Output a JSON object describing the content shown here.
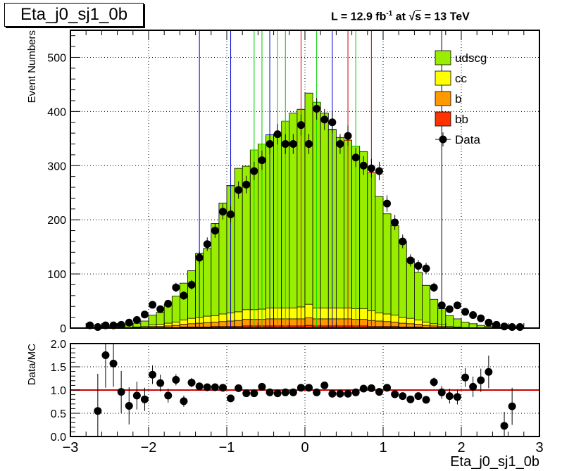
{
  "title": "Eta_j0_sj1_0b",
  "lumi_label": {
    "prefix": "L = 12.9 fb",
    "exponent": "-1",
    "middle": " at ",
    "sqrt_symbol": "√",
    "sqrt_arg": "s",
    "suffix": " = 13 TeV"
  },
  "colors": {
    "udscg": "#99ee00",
    "cc": "#ffff00",
    "b": "#ff9900",
    "bb": "#ff3300",
    "ratio_line": "#cc0000"
  },
  "chart_data": [
    {
      "type": "bar",
      "stacked": true,
      "ylabel": "Event Numbers",
      "xlim": [
        -3,
        3
      ],
      "ylim": [
        0,
        550
      ],
      "yticks": [
        0,
        100,
        200,
        300,
        400,
        500
      ],
      "grid": true,
      "legend_position": "top-right",
      "x_bin_centers": [
        -2.75,
        -2.65,
        -2.55,
        -2.45,
        -2.35,
        -2.25,
        -2.15,
        -2.05,
        -1.95,
        -1.85,
        -1.75,
        -1.65,
        -1.55,
        -1.45,
        -1.35,
        -1.25,
        -1.15,
        -1.05,
        -0.95,
        -0.85,
        -0.75,
        -0.65,
        -0.55,
        -0.45,
        -0.35,
        -0.25,
        -0.15,
        -0.05,
        0.05,
        0.15,
        0.25,
        0.35,
        0.45,
        0.55,
        0.65,
        0.75,
        0.85,
        0.95,
        1.05,
        1.15,
        1.25,
        1.35,
        1.45,
        1.55,
        1.65,
        1.75,
        1.85,
        1.95,
        2.05,
        2.15,
        2.25,
        2.35,
        2.45,
        2.55,
        2.65,
        2.75
      ],
      "series": [
        {
          "name": "udscg",
          "values": [
            1,
            1,
            2,
            3,
            4,
            5,
            7,
            10,
            18,
            22,
            35,
            48,
            68,
            88,
            118,
            125,
            170,
            205,
            235,
            265,
            265,
            295,
            305,
            320,
            322,
            345,
            360,
            365,
            390,
            380,
            360,
            330,
            315,
            310,
            300,
            290,
            255,
            215,
            185,
            165,
            140,
            110,
            88,
            68,
            45,
            30,
            20,
            15,
            10,
            8,
            5,
            3,
            2,
            1,
            1,
            1
          ]
        },
        {
          "name": "cc",
          "values": [
            0,
            0,
            0,
            0,
            0,
            1,
            1,
            2,
            3,
            4,
            5,
            6,
            8,
            10,
            11,
            12,
            12,
            14,
            15,
            16,
            18,
            18,
            19,
            20,
            20,
            20,
            20,
            22,
            25,
            20,
            20,
            20,
            20,
            20,
            20,
            20,
            18,
            15,
            14,
            13,
            11,
            10,
            8,
            6,
            4,
            3,
            2,
            1,
            1,
            0,
            0,
            0,
            0,
            0,
            0,
            0
          ]
        },
        {
          "name": "b",
          "values": [
            0,
            0,
            0,
            0,
            0,
            0,
            1,
            1,
            2,
            2,
            3,
            4,
            5,
            6,
            7,
            8,
            8,
            9,
            10,
            11,
            12,
            12,
            12,
            13,
            13,
            13,
            13,
            13,
            14,
            13,
            13,
            13,
            13,
            13,
            12,
            12,
            11,
            10,
            9,
            8,
            7,
            6,
            5,
            4,
            3,
            2,
            1,
            1,
            0,
            0,
            0,
            0,
            0,
            0,
            0,
            0
          ]
        },
        {
          "name": "bb",
          "values": [
            0,
            0,
            0,
            0,
            0,
            0,
            0,
            0,
            1,
            1,
            1,
            1,
            2,
            2,
            2,
            2,
            3,
            3,
            3,
            3,
            4,
            4,
            4,
            4,
            4,
            4,
            4,
            4,
            5,
            4,
            4,
            4,
            4,
            4,
            4,
            4,
            3,
            3,
            3,
            3,
            2,
            2,
            2,
            1,
            1,
            1,
            0,
            0,
            0,
            0,
            0,
            0,
            0,
            0,
            0,
            0
          ]
        },
        {
          "name": "Data",
          "kind": "points",
          "x": [
            -2.75,
            -2.65,
            -2.55,
            -2.45,
            -2.35,
            -2.25,
            -2.15,
            -2.05,
            -1.95,
            -1.85,
            -1.75,
            -1.65,
            -1.55,
            -1.45,
            -1.35,
            -1.25,
            -1.15,
            -1.05,
            -0.95,
            -0.85,
            -0.75,
            -0.65,
            -0.55,
            -0.45,
            -0.35,
            -0.25,
            -0.15,
            -0.05,
            0.05,
            0.15,
            0.25,
            0.35,
            0.45,
            0.55,
            0.65,
            0.75,
            0.85,
            0.95,
            1.05,
            1.15,
            1.25,
            1.35,
            1.45,
            1.55,
            1.65,
            1.75,
            1.85,
            1.95,
            2.05,
            2.15,
            2.25,
            2.35,
            2.45,
            2.55,
            2.65,
            2.75
          ],
          "values": [
            5,
            2,
            5,
            5,
            6,
            10,
            15,
            25,
            43,
            35,
            45,
            75,
            60,
            80,
            130,
            155,
            180,
            215,
            210,
            255,
            265,
            290,
            310,
            340,
            358,
            340,
            340,
            375,
            340,
            405,
            385,
            380,
            340,
            355,
            315,
            300,
            295,
            290,
            230,
            195,
            160,
            125,
            115,
            110,
            75,
            42,
            35,
            42,
            30,
            24,
            18,
            10,
            6,
            3,
            2,
            2
          ]
        }
      ]
    },
    {
      "type": "scatter",
      "ylabel": "Data/MC",
      "xlabel": "Eta_j0_sj1_0b",
      "xlim": [
        -3,
        3
      ],
      "ylim": [
        0,
        2
      ],
      "yticks": [
        0,
        0.5,
        1,
        1.5,
        2
      ],
      "xticks": [
        -3,
        -2,
        -1,
        0,
        1,
        2,
        3
      ],
      "reference_line": 1,
      "grid": true,
      "x": [
        -2.65,
        -2.55,
        -2.45,
        -2.35,
        -2.25,
        -2.15,
        -2.05,
        -1.95,
        -1.85,
        -1.75,
        -1.65,
        -1.55,
        -1.45,
        -1.35,
        -1.25,
        -1.15,
        -1.05,
        -0.95,
        -0.85,
        -0.75,
        -0.65,
        -0.55,
        -0.45,
        -0.35,
        -0.25,
        -0.15,
        -0.05,
        0.05,
        0.15,
        0.25,
        0.35,
        0.45,
        0.55,
        0.65,
        0.75,
        0.85,
        0.95,
        1.05,
        1.15,
        1.25,
        1.35,
        1.45,
        1.55,
        1.65,
        1.75,
        1.85,
        1.95,
        2.05,
        2.15,
        2.25,
        2.35,
        2.55,
        2.65
      ],
      "values": [
        0.55,
        1.75,
        1.57,
        0.96,
        0.66,
        0.88,
        0.8,
        1.33,
        1.15,
        0.88,
        1.22,
        0.76,
        1.16,
        1.08,
        1.06,
        1.06,
        1.05,
        0.82,
        1.04,
        0.93,
        0.93,
        1.07,
        0.95,
        0.93,
        0.95,
        0.95,
        1.05,
        1.05,
        0.95,
        1.1,
        0.92,
        0.92,
        0.92,
        0.95,
        1.03,
        1.04,
        0.96,
        1.05,
        0.91,
        0.87,
        0.8,
        0.87,
        0.79,
        1.17,
        0.95,
        0.87,
        0.85,
        1.27,
        1.07,
        1.21,
        1.39,
        0.23,
        0.65
      ],
      "errors": [
        0.8,
        0.7,
        0.5,
        0.45,
        0.4,
        0.3,
        0.25,
        0.2,
        0.18,
        0.15,
        0.12,
        0.12,
        0.1,
        0.08,
        0.07,
        0.06,
        0.05,
        0.05,
        0.05,
        0.05,
        0.05,
        0.04,
        0.04,
        0.04,
        0.04,
        0.04,
        0.04,
        0.04,
        0.04,
        0.04,
        0.04,
        0.04,
        0.04,
        0.04,
        0.05,
        0.05,
        0.05,
        0.05,
        0.06,
        0.06,
        0.07,
        0.08,
        0.08,
        0.1,
        0.14,
        0.16,
        0.16,
        0.2,
        0.22,
        0.25,
        0.35,
        0.3,
        0.4
      ]
    }
  ]
}
